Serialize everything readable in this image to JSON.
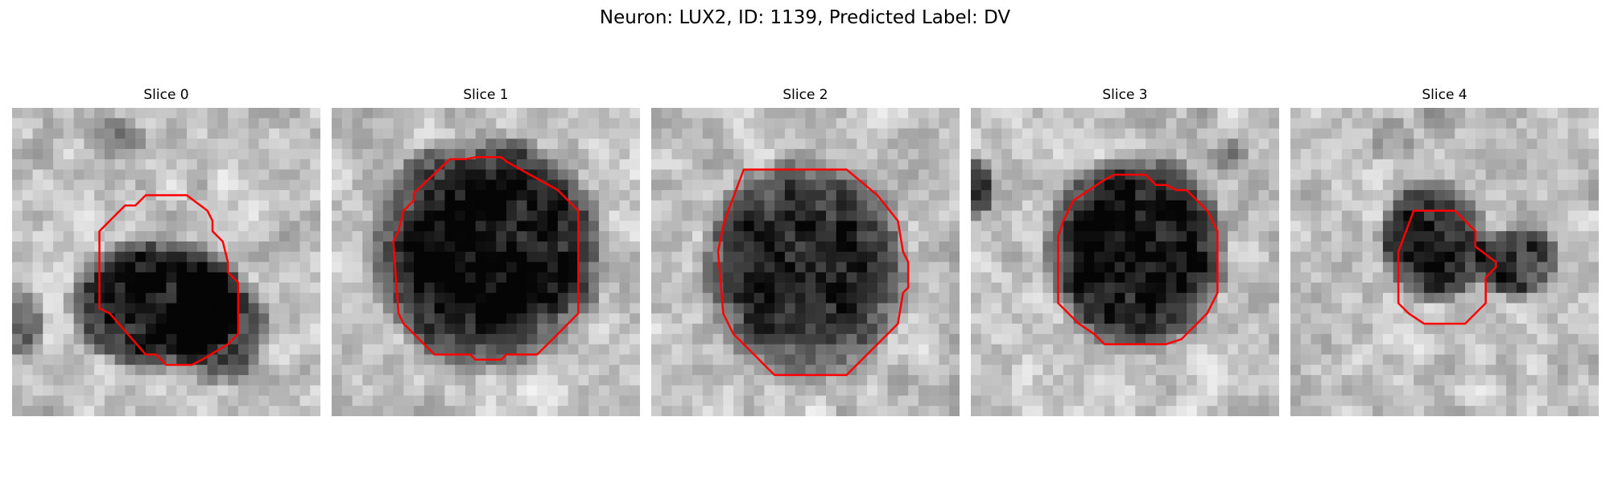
{
  "figure": {
    "title": "Neuron: LUX2, ID: 1139, Predicted Label: DV",
    "contour_color": "#ff0000",
    "image_colormap": "grayscale"
  },
  "panels": [
    {
      "title": "Slice 0"
    },
    {
      "title": "Slice 1"
    },
    {
      "title": "Slice 2"
    },
    {
      "title": "Slice 3"
    },
    {
      "title": "Slice 4"
    }
  ]
}
